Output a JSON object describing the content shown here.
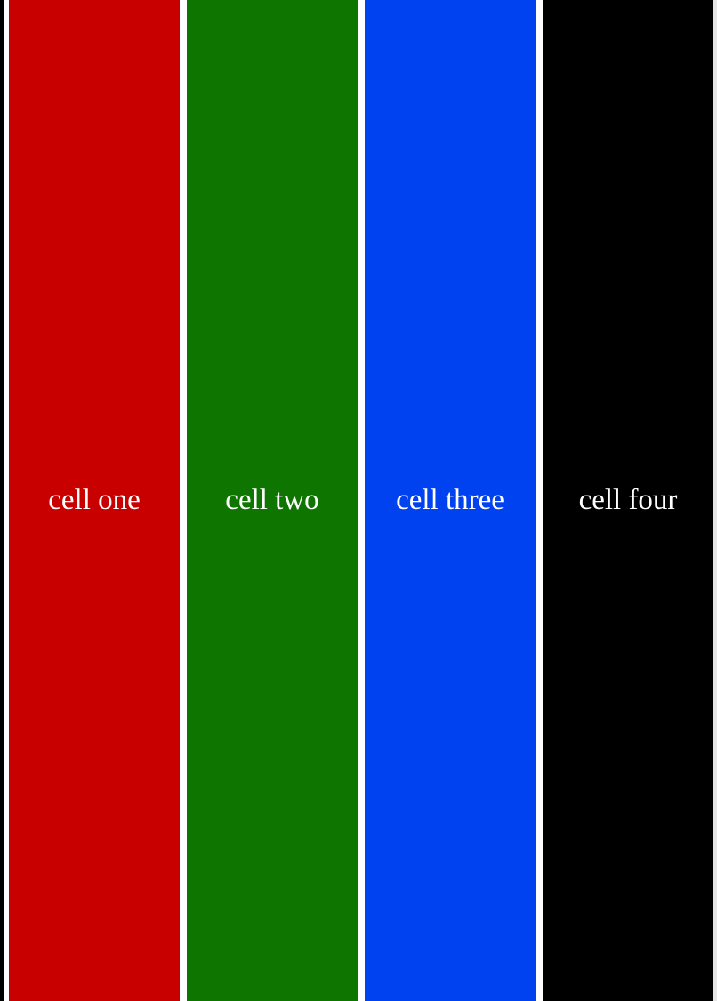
{
  "cells": [
    {
      "label": "cell one",
      "color": "#c80000"
    },
    {
      "label": "cell two",
      "color": "#0e7600"
    },
    {
      "label": "cell three",
      "color": "#0041f0"
    },
    {
      "label": "cell four",
      "color": "#000000"
    }
  ],
  "colors": {
    "background": "#ffffff",
    "text": "#ffffff"
  }
}
